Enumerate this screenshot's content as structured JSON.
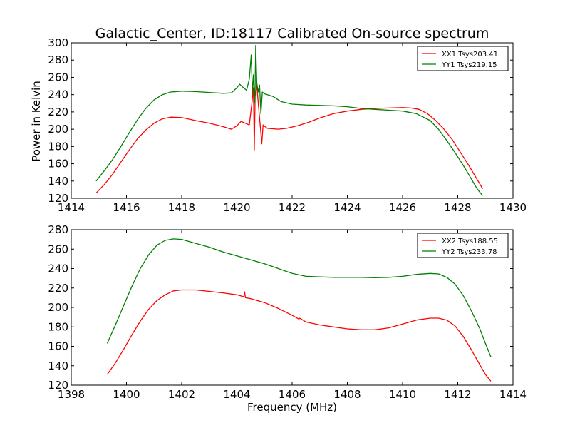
{
  "figure": {
    "title": "Galactic_Center, ID:18117 Calibrated On-source spectrum",
    "xlabel": "Frequency (MHz)",
    "ylabel": "Power in Kelvin"
  },
  "colors": {
    "red": "#ff0000",
    "green": "#008000"
  },
  "chart_data": [
    {
      "type": "line",
      "xlabel": "",
      "ylabel": "Power in Kelvin",
      "xlim": [
        1414,
        1430
      ],
      "ylim": [
        120,
        300
      ],
      "xticks": [
        1414,
        1416,
        1418,
        1420,
        1422,
        1424,
        1426,
        1428,
        1430
      ],
      "yticks": [
        120,
        140,
        160,
        180,
        200,
        220,
        240,
        260,
        280,
        300
      ],
      "legend": "top-right",
      "series": [
        {
          "name": "XX1 Tsys203.41",
          "color": "#ff0000",
          "points": [
            [
              1414.9,
              126
            ],
            [
              1415.2,
              136
            ],
            [
              1415.5,
              148
            ],
            [
              1415.8,
              162
            ],
            [
              1416.1,
              176
            ],
            [
              1416.4,
              189
            ],
            [
              1416.7,
              199
            ],
            [
              1417.0,
              207
            ],
            [
              1417.3,
              212
            ],
            [
              1417.6,
              214
            ],
            [
              1418.0,
              213.5
            ],
            [
              1418.5,
              210
            ],
            [
              1419.0,
              207
            ],
            [
              1419.5,
              203
            ],
            [
              1419.8,
              200
            ],
            [
              1420.0,
              204
            ],
            [
              1420.15,
              209
            ],
            [
              1420.3,
              207
            ],
            [
              1420.45,
              205
            ],
            [
              1420.55,
              232
            ],
            [
              1420.6,
              248
            ],
            [
              1420.63,
              176
            ],
            [
              1420.66,
              238
            ],
            [
              1420.72,
              251
            ],
            [
              1420.78,
              228
            ],
            [
              1420.85,
              203
            ],
            [
              1420.9,
              183
            ],
            [
              1420.95,
              205
            ],
            [
              1421.1,
              201
            ],
            [
              1421.5,
              200
            ],
            [
              1421.8,
              201
            ],
            [
              1422.2,
              204
            ],
            [
              1422.6,
              208
            ],
            [
              1423.0,
              213
            ],
            [
              1423.5,
              218
            ],
            [
              1424.0,
              221
            ],
            [
              1424.5,
              223
            ],
            [
              1425.0,
              224
            ],
            [
              1425.5,
              224.5
            ],
            [
              1426.0,
              225
            ],
            [
              1426.3,
              224.5
            ],
            [
              1426.6,
              223
            ],
            [
              1426.9,
              218
            ],
            [
              1427.2,
              210
            ],
            [
              1427.5,
              200
            ],
            [
              1427.8,
              188
            ],
            [
              1428.1,
              173
            ],
            [
              1428.4,
              158
            ],
            [
              1428.7,
              142
            ],
            [
              1428.9,
              131
            ]
          ]
        },
        {
          "name": "YY1 Tsys219.15",
          "color": "#008000",
          "points": [
            [
              1414.9,
              140
            ],
            [
              1415.2,
              152
            ],
            [
              1415.5,
              165
            ],
            [
              1415.8,
              180
            ],
            [
              1416.1,
              196
            ],
            [
              1416.4,
              211
            ],
            [
              1416.7,
              224
            ],
            [
              1417.0,
              234
            ],
            [
              1417.3,
              240
            ],
            [
              1417.6,
              243
            ],
            [
              1418.0,
              244
            ],
            [
              1418.5,
              243.5
            ],
            [
              1419.0,
              242.5
            ],
            [
              1419.5,
              241.5
            ],
            [
              1419.8,
              242
            ],
            [
              1420.0,
              248
            ],
            [
              1420.1,
              252
            ],
            [
              1420.2,
              249
            ],
            [
              1420.35,
              245
            ],
            [
              1420.45,
              258
            ],
            [
              1420.52,
              286
            ],
            [
              1420.56,
              240
            ],
            [
              1420.6,
              263
            ],
            [
              1420.65,
              230
            ],
            [
              1420.68,
              297
            ],
            [
              1420.72,
              254
            ],
            [
              1420.77,
              243
            ],
            [
              1420.82,
              251
            ],
            [
              1420.87,
              218
            ],
            [
              1420.92,
              243
            ],
            [
              1421.0,
              241
            ],
            [
              1421.3,
              238
            ],
            [
              1421.6,
              232
            ],
            [
              1422.0,
              229
            ],
            [
              1422.5,
              228
            ],
            [
              1423.0,
              227.5
            ],
            [
              1423.5,
              227
            ],
            [
              1424.0,
              226
            ],
            [
              1424.5,
              224
            ],
            [
              1425.0,
              223
            ],
            [
              1425.5,
              222
            ],
            [
              1426.0,
              221
            ],
            [
              1426.5,
              218
            ],
            [
              1427.0,
              210
            ],
            [
              1427.3,
              200
            ],
            [
              1427.6,
              187
            ],
            [
              1427.9,
              173
            ],
            [
              1428.2,
              158
            ],
            [
              1428.5,
              142
            ],
            [
              1428.7,
              131
            ],
            [
              1428.9,
              123
            ]
          ]
        }
      ]
    },
    {
      "type": "line",
      "xlabel": "Frequency (MHz)",
      "ylabel": "",
      "xlim": [
        1398,
        1414
      ],
      "ylim": [
        120,
        280
      ],
      "xticks": [
        1398,
        1400,
        1402,
        1404,
        1406,
        1408,
        1410,
        1412,
        1414
      ],
      "yticks": [
        120,
        140,
        160,
        180,
        200,
        220,
        240,
        260,
        280
      ],
      "legend": "top-right",
      "series": [
        {
          "name": "XX2 Tsys188.55",
          "color": "#ff0000",
          "points": [
            [
              1399.3,
              131
            ],
            [
              1399.6,
              143
            ],
            [
              1399.9,
              157
            ],
            [
              1400.2,
              172
            ],
            [
              1400.5,
              186
            ],
            [
              1400.8,
              198
            ],
            [
              1401.1,
              207
            ],
            [
              1401.4,
              213
            ],
            [
              1401.7,
              217
            ],
            [
              1402.0,
              218
            ],
            [
              1402.5,
              218
            ],
            [
              1403.0,
              216.5
            ],
            [
              1403.5,
              215
            ],
            [
              1404.0,
              213
            ],
            [
              1404.25,
              211
            ],
            [
              1404.28,
              216
            ],
            [
              1404.31,
              210
            ],
            [
              1404.5,
              209
            ],
            [
              1405.0,
              205
            ],
            [
              1405.5,
              199
            ],
            [
              1406.0,
              192
            ],
            [
              1406.25,
              188
            ],
            [
              1406.28,
              189
            ],
            [
              1406.5,
              185
            ],
            [
              1407.0,
              182
            ],
            [
              1407.5,
              180
            ],
            [
              1408.0,
              178
            ],
            [
              1408.5,
              177
            ],
            [
              1409.0,
              177
            ],
            [
              1409.5,
              179
            ],
            [
              1410.0,
              183
            ],
            [
              1410.5,
              187
            ],
            [
              1411.0,
              189
            ],
            [
              1411.3,
              189
            ],
            [
              1411.6,
              187
            ],
            [
              1411.9,
              181
            ],
            [
              1412.2,
              170
            ],
            [
              1412.5,
              156
            ],
            [
              1412.8,
              141
            ],
            [
              1413.0,
              131
            ],
            [
              1413.2,
              124
            ]
          ]
        },
        {
          "name": "YY2 Tsys233.78",
          "color": "#008000",
          "points": [
            [
              1399.3,
              163
            ],
            [
              1399.6,
              182
            ],
            [
              1399.9,
              202
            ],
            [
              1400.2,
              222
            ],
            [
              1400.5,
              240
            ],
            [
              1400.8,
              254
            ],
            [
              1401.1,
              264
            ],
            [
              1401.4,
              269
            ],
            [
              1401.7,
              270.5
            ],
            [
              1402.0,
              270
            ],
            [
              1402.5,
              266
            ],
            [
              1403.0,
              262
            ],
            [
              1403.5,
              257
            ],
            [
              1404.0,
              253
            ],
            [
              1404.5,
              249
            ],
            [
              1405.0,
              245
            ],
            [
              1405.5,
              240
            ],
            [
              1406.0,
              235
            ],
            [
              1406.5,
              232
            ],
            [
              1407.0,
              231.5
            ],
            [
              1407.5,
              231
            ],
            [
              1408.0,
              231
            ],
            [
              1408.5,
              231
            ],
            [
              1409.0,
              230.5
            ],
            [
              1409.5,
              231
            ],
            [
              1410.0,
              232
            ],
            [
              1410.5,
              234
            ],
            [
              1411.0,
              235
            ],
            [
              1411.3,
              234.5
            ],
            [
              1411.6,
              231
            ],
            [
              1411.9,
              224
            ],
            [
              1412.2,
              212
            ],
            [
              1412.5,
              196
            ],
            [
              1412.8,
              178
            ],
            [
              1413.0,
              163
            ],
            [
              1413.2,
              149
            ]
          ]
        }
      ]
    }
  ]
}
